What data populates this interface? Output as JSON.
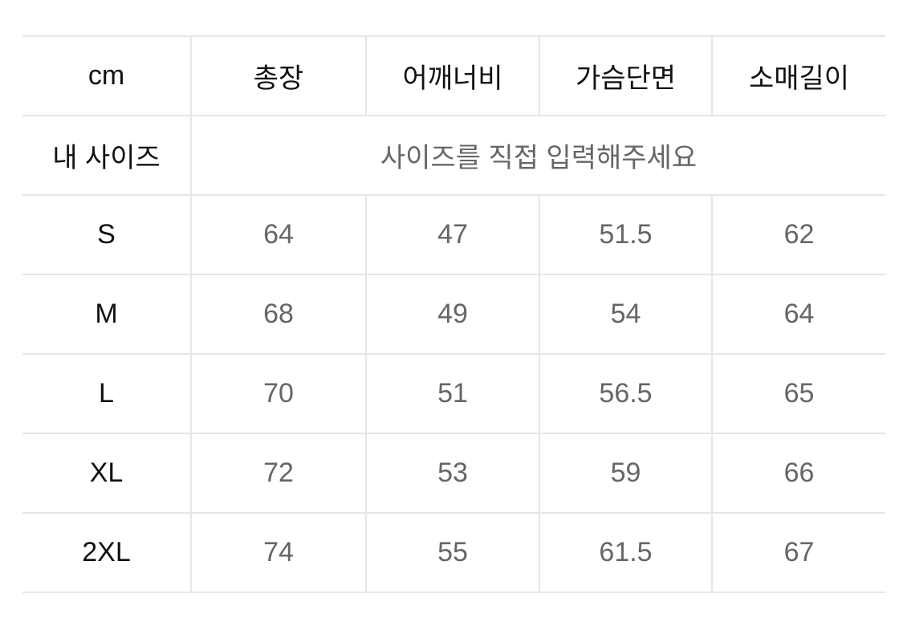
{
  "table": {
    "unit_label": "cm",
    "columns": [
      "총장",
      "어깨너비",
      "가슴단면",
      "소매길이"
    ],
    "my_size": {
      "label": "내 사이즈",
      "placeholder": "사이즈를 직접 입력해주세요"
    },
    "rows": [
      {
        "size": "S",
        "values": [
          "64",
          "47",
          "51.5",
          "62"
        ]
      },
      {
        "size": "M",
        "values": [
          "68",
          "49",
          "54",
          "64"
        ]
      },
      {
        "size": "L",
        "values": [
          "70",
          "51",
          "56.5",
          "65"
        ]
      },
      {
        "size": "XL",
        "values": [
          "72",
          "53",
          "59",
          "66"
        ]
      },
      {
        "size": "2XL",
        "values": [
          "74",
          "55",
          "61.5",
          "67"
        ]
      }
    ]
  }
}
